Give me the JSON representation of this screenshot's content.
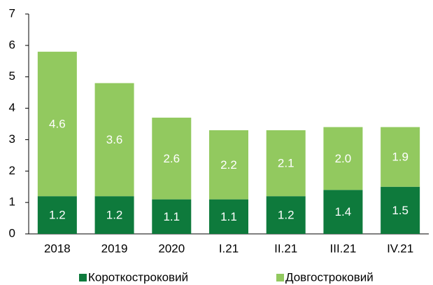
{
  "chart_data": {
    "type": "stacked_bar",
    "categories": [
      "2018",
      "2019",
      "2020",
      "I.21",
      "II.21",
      "III.21",
      "IV.21"
    ],
    "series": [
      {
        "name": "Короткостроковий",
        "color": "#0e7a3c",
        "values": [
          1.2,
          1.2,
          1.1,
          1.1,
          1.2,
          1.4,
          1.5
        ]
      },
      {
        "name": "Довгостроковий",
        "color": "#92c95f",
        "values": [
          4.6,
          3.6,
          2.6,
          2.2,
          2.1,
          2.0,
          1.9
        ],
        "value_labels": [
          "4.6",
          "3.6",
          "2.6",
          "2.2",
          "2.1",
          "2.0",
          "1.9"
        ]
      }
    ],
    "ylim": [
      0,
      7
    ],
    "yticks": [
      0,
      1,
      2,
      3,
      4,
      5,
      6,
      7
    ],
    "grid": false,
    "legend": "bottom"
  }
}
